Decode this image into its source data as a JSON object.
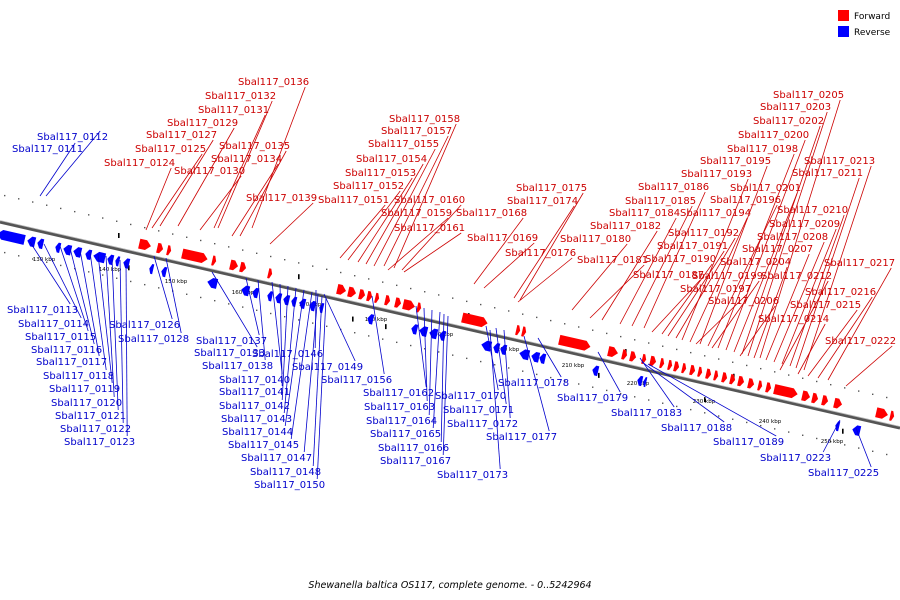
{
  "caption": "Shewanella baltica OS117, complete genome. - 0..5242964",
  "legend": [
    {
      "label": "Forward",
      "color": "#ff0000"
    },
    {
      "label": "Reverse",
      "color": "#0000ff"
    }
  ],
  "colors": {
    "forward": "#ff0000",
    "forward_text": "#cc0000",
    "reverse": "#0000ff",
    "reverse_text": "#0000cc",
    "backbone": "#808080"
  },
  "scale_ticks": [
    "130 kbp",
    "140 kbp",
    "150 kbp",
    "160 kbp",
    "170 kbp",
    "180 kbp",
    "190 kbp",
    "200 kbp",
    "210 kbp",
    "220 kbp",
    "230 kbp",
    "240 kbp",
    "250 kbp"
  ],
  "forward_genes": [
    "Sbal117_0124",
    "Sbal117_0125",
    "Sbal117_0127",
    "Sbal117_0129",
    "Sbal117_0131",
    "Sbal117_0132",
    "Sbal117_0136",
    "Sbal117_0130",
    "Sbal117_0134",
    "Sbal117_0135",
    "Sbal117_0139",
    "Sbal117_0151",
    "Sbal117_0152",
    "Sbal117_0153",
    "Sbal117_0154",
    "Sbal117_0155",
    "Sbal117_0157",
    "Sbal117_0158",
    "Sbal117_0160",
    "Sbal117_0159",
    "Sbal117_0161",
    "Sbal117_0168",
    "Sbal117_0169",
    "Sbal117_0174",
    "Sbal117_0175",
    "Sbal117_0176",
    "Sbal117_0180",
    "Sbal117_0181",
    "Sbal117_0182",
    "Sbal117_0184",
    "Sbal117_0185",
    "Sbal117_0186",
    "Sbal117_0187",
    "Sbal117_0190",
    "Sbal117_0191",
    "Sbal117_0192",
    "Sbal117_0193",
    "Sbal117_0194",
    "Sbal117_0195",
    "Sbal117_0196",
    "Sbal117_0197",
    "Sbal117_0198",
    "Sbal117_0199",
    "Sbal117_0200",
    "Sbal117_0201",
    "Sbal117_0202",
    "Sbal117_0203",
    "Sbal117_0204",
    "Sbal117_0205",
    "Sbal117_0206",
    "Sbal117_0207",
    "Sbal117_0208",
    "Sbal117_0209",
    "Sbal117_0210",
    "Sbal117_0211",
    "Sbal117_0212",
    "Sbal117_0213",
    "Sbal117_0214",
    "Sbal117_0215",
    "Sbal117_0216",
    "Sbal117_0217",
    "Sbal117_0222"
  ],
  "reverse_genes": [
    "Sbal117_0111",
    "Sbal117_0112",
    "Sbal117_0113",
    "Sbal117_0114",
    "Sbal117_0115",
    "Sbal117_0116",
    "Sbal117_0117",
    "Sbal117_0118",
    "Sbal117_0119",
    "Sbal117_0120",
    "Sbal117_0121",
    "Sbal117_0122",
    "Sbal117_0123",
    "Sbal117_0126",
    "Sbal117_0128",
    "Sbal117_0133",
    "Sbal117_0137",
    "Sbal117_0138",
    "Sbal117_0140",
    "Sbal117_0141",
    "Sbal117_0142",
    "Sbal117_0143",
    "Sbal117_0144",
    "Sbal117_0145",
    "Sbal117_0146",
    "Sbal117_0147",
    "Sbal117_0148",
    "Sbal117_0149",
    "Sbal117_0150",
    "Sbal117_0156",
    "Sbal117_0162",
    "Sbal117_0163",
    "Sbal117_0164",
    "Sbal117_0165",
    "Sbal117_0166",
    "Sbal117_0167",
    "Sbal117_0170",
    "Sbal117_0171",
    "Sbal117_0172",
    "Sbal117_0173",
    "Sbal117_0177",
    "Sbal117_0178",
    "Sbal117_0179",
    "Sbal117_0183",
    "Sbal117_0188",
    "Sbal117_0189",
    "Sbal117_0223",
    "Sbal117_0225"
  ]
}
